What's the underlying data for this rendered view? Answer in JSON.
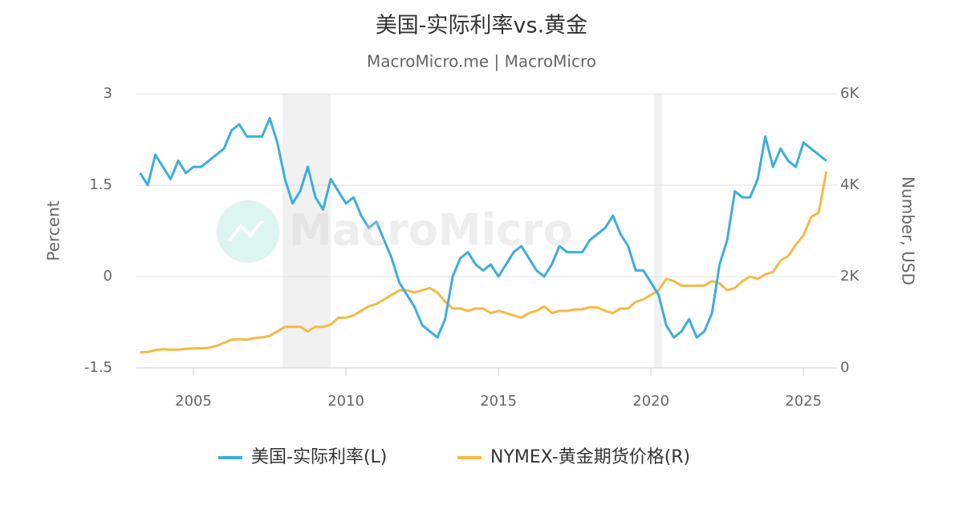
{
  "chart_data": {
    "type": "line",
    "title": "美国-实际利率vs.黄金",
    "subtitle": "MacroMicro.me | MacroMicro",
    "watermark": "MacroMicro",
    "y_label": "Percent",
    "y2_label": "Number, USD",
    "xlim": [
      2003.13,
      2026.1
    ],
    "xticks": [
      2005,
      2010,
      2015,
      2020,
      2025
    ],
    "ylim": [
      -1.5,
      3
    ],
    "yticks": [
      -1.5,
      0,
      1.5,
      3
    ],
    "y2lim": [
      0,
      6000
    ],
    "y2ticks": [
      0,
      {
        "value": 2000,
        "label": "2K"
      },
      {
        "value": 4000,
        "label": "4K"
      },
      {
        "value": 6000,
        "label": "6K"
      }
    ],
    "grid": true,
    "legend": "bottom",
    "shaded_ranges": [
      [
        2007.92,
        2009.5
      ],
      [
        2020.1,
        2020.35
      ]
    ],
    "x": [
      2003.25,
      2003.5,
      2003.75,
      2004,
      2004.25,
      2004.5,
      2004.75,
      2005,
      2005.25,
      2005.5,
      2005.75,
      2006,
      2006.25,
      2006.5,
      2006.75,
      2007,
      2007.25,
      2007.5,
      2007.75,
      2008,
      2008.25,
      2008.5,
      2008.75,
      2009,
      2009.25,
      2009.5,
      2009.75,
      2010,
      2010.25,
      2010.5,
      2010.75,
      2011,
      2011.25,
      2011.5,
      2011.75,
      2012,
      2012.25,
      2012.5,
      2012.75,
      2013,
      2013.25,
      2013.5,
      2013.75,
      2014,
      2014.25,
      2014.5,
      2014.75,
      2015,
      2015.25,
      2015.5,
      2015.75,
      2016,
      2016.25,
      2016.5,
      2016.75,
      2017,
      2017.25,
      2017.5,
      2017.75,
      2018,
      2018.25,
      2018.5,
      2018.75,
      2019,
      2019.25,
      2019.5,
      2019.75,
      2020,
      2020.25,
      2020.5,
      2020.75,
      2021,
      2021.25,
      2021.5,
      2021.75,
      2022,
      2022.25,
      2022.5,
      2022.75,
      2023,
      2023.25,
      2023.5,
      2023.75,
      2024,
      2024.25,
      2024.5,
      2024.75,
      2025,
      2025.25,
      2025.5,
      2025.75
    ],
    "series": [
      {
        "name": "美国-实际利率(L)",
        "color": "#3daed9",
        "axis": "y",
        "values": [
          1.7,
          1.5,
          2.0,
          1.8,
          1.6,
          1.9,
          1.7,
          1.8,
          1.8,
          1.9,
          2.0,
          2.1,
          2.4,
          2.5,
          2.3,
          2.3,
          2.3,
          2.6,
          2.2,
          1.6,
          1.2,
          1.4,
          1.8,
          1.3,
          1.1,
          1.6,
          1.4,
          1.2,
          1.3,
          1.0,
          0.8,
          0.9,
          0.6,
          0.3,
          -0.1,
          -0.3,
          -0.5,
          -0.8,
          -0.9,
          -1.0,
          -0.7,
          0.0,
          0.3,
          0.4,
          0.2,
          0.1,
          0.2,
          0.0,
          0.2,
          0.4,
          0.5,
          0.3,
          0.1,
          0.0,
          0.2,
          0.5,
          0.4,
          0.4,
          0.4,
          0.6,
          0.7,
          0.8,
          1.0,
          0.7,
          0.5,
          0.1,
          0.1,
          -0.1,
          -0.3,
          -0.8,
          -1.0,
          -0.9,
          -0.7,
          -1.0,
          -0.9,
          -0.6,
          0.2,
          0.6,
          1.4,
          1.3,
          1.3,
          1.6,
          2.3,
          1.8,
          2.1,
          1.9,
          1.8,
          2.2,
          2.1,
          2.0,
          1.9
        ]
      },
      {
        "name": "NYMEX-黄金期货价格(R)",
        "color": "#f5b944",
        "axis": "y2",
        "values": [
          340,
          350,
          390,
          410,
          400,
          400,
          420,
          425,
          430,
          440,
          480,
          550,
          620,
          630,
          620,
          650,
          670,
          700,
          800,
          900,
          900,
          900,
          800,
          900,
          900,
          950,
          1100,
          1100,
          1150,
          1250,
          1350,
          1400,
          1500,
          1600,
          1700,
          1700,
          1650,
          1700,
          1750,
          1650,
          1450,
          1300,
          1300,
          1250,
          1300,
          1300,
          1200,
          1250,
          1200,
          1150,
          1100,
          1200,
          1250,
          1350,
          1200,
          1250,
          1250,
          1280,
          1280,
          1330,
          1320,
          1250,
          1200,
          1300,
          1300,
          1450,
          1500,
          1600,
          1700,
          1950,
          1900,
          1800,
          1800,
          1800,
          1800,
          1900,
          1850,
          1700,
          1750,
          1900,
          2000,
          1950,
          2050,
          2100,
          2350,
          2450,
          2700,
          2900,
          3300,
          3400,
          4300
        ]
      }
    ]
  }
}
